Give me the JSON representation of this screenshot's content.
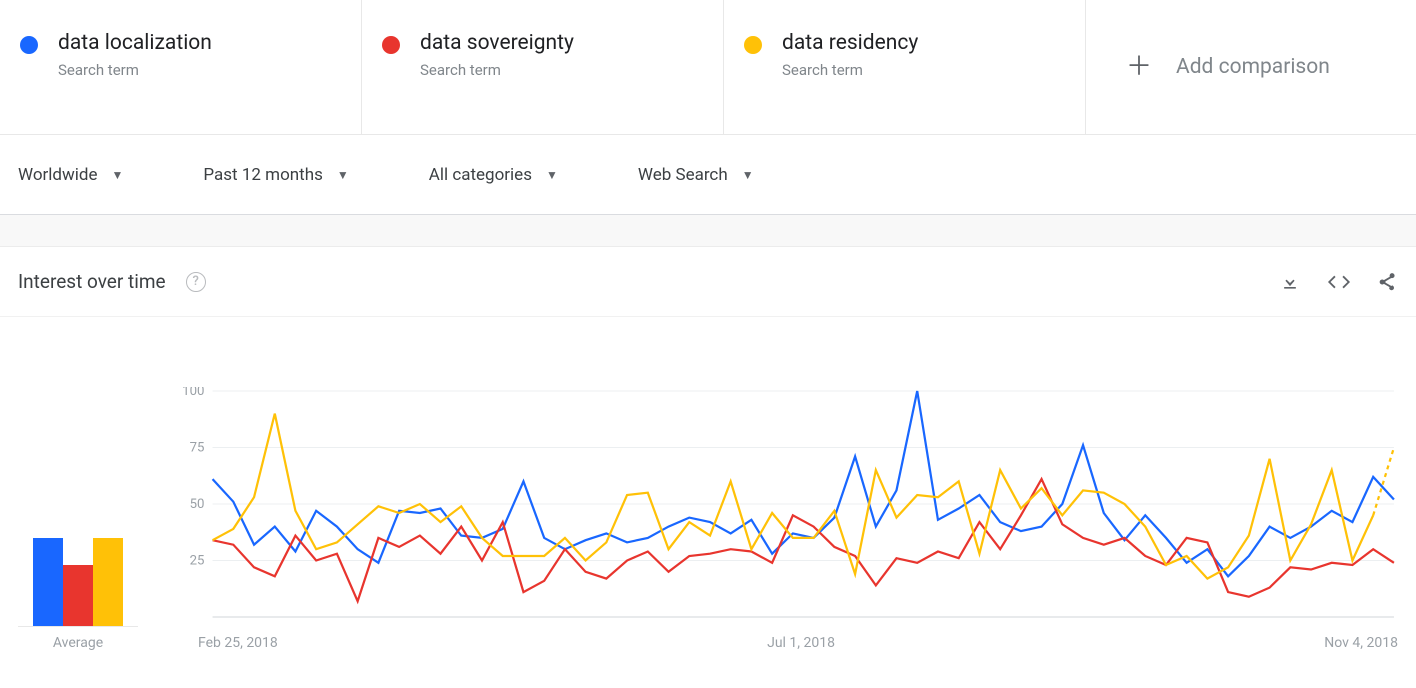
{
  "terms": [
    {
      "label": "data localization",
      "sub": "Search term",
      "color": "#1967ff"
    },
    {
      "label": "data sovereignty",
      "sub": "Search term",
      "color": "#e8352e"
    },
    {
      "label": "data residency",
      "sub": "Search term",
      "color": "#ffc107"
    }
  ],
  "add_comparison_label": "Add comparison",
  "filters": {
    "region": "Worldwide",
    "timerange": "Past 12 months",
    "categories": "All categories",
    "search_type": "Web Search"
  },
  "section_title": "Interest over time",
  "chart": {
    "type": "line",
    "ylim": [
      0,
      100
    ],
    "yticks": [
      25,
      50,
      75,
      100
    ],
    "grid_color": "#eceff1",
    "background_color": "#ffffff",
    "x_labels": [
      "Feb 25, 2018",
      "Jul 1, 2018",
      "Nov 4, 2018"
    ],
    "series": [
      {
        "name": "data localization",
        "color": "#1967ff",
        "values": [
          61,
          51,
          32,
          40,
          29,
          47,
          40,
          30,
          24,
          47,
          46,
          48,
          36,
          35,
          39,
          60,
          35,
          30,
          34,
          37,
          33,
          35,
          40,
          44,
          42,
          37,
          43,
          28,
          37,
          35,
          44,
          71,
          40,
          56,
          100,
          43,
          48,
          54,
          42,
          38,
          40,
          50,
          76,
          46,
          34,
          45,
          35,
          24,
          30,
          18,
          27,
          40,
          35,
          40,
          47,
          42,
          62,
          52
        ]
      },
      {
        "name": "data sovereignty",
        "color": "#e8352e",
        "values": [
          34,
          32,
          22,
          18,
          36,
          25,
          28,
          7,
          35,
          31,
          36,
          28,
          40,
          25,
          42,
          11,
          16,
          30,
          20,
          17,
          25,
          29,
          20,
          27,
          28,
          30,
          29,
          24,
          45,
          40,
          31,
          27,
          14,
          26,
          24,
          29,
          26,
          42,
          30,
          45,
          61,
          41,
          35,
          32,
          35,
          27,
          23,
          35,
          33,
          11,
          9,
          13,
          22,
          21,
          24,
          23,
          30,
          24
        ]
      },
      {
        "name": "data residency",
        "color": "#ffc107",
        "values": [
          34,
          39,
          53,
          90,
          47,
          30,
          33,
          41,
          49,
          46,
          50,
          42,
          49,
          35,
          27,
          27,
          27,
          35,
          25,
          33,
          54,
          55,
          30,
          42,
          36,
          60,
          30,
          46,
          35,
          35,
          47,
          19,
          65,
          44,
          54,
          53,
          60,
          28,
          65,
          48,
          57,
          45,
          56,
          55,
          50,
          40,
          23,
          27,
          17,
          22,
          36,
          70,
          25,
          41,
          65,
          25,
          45,
          75
        ]
      }
    ],
    "last_segment_dashed_index": 2
  },
  "average": {
    "label": "Average",
    "values": [
      42,
      29,
      42
    ],
    "colors": [
      "#1967ff",
      "#e8352e",
      "#ffc107"
    ],
    "max": 100
  }
}
